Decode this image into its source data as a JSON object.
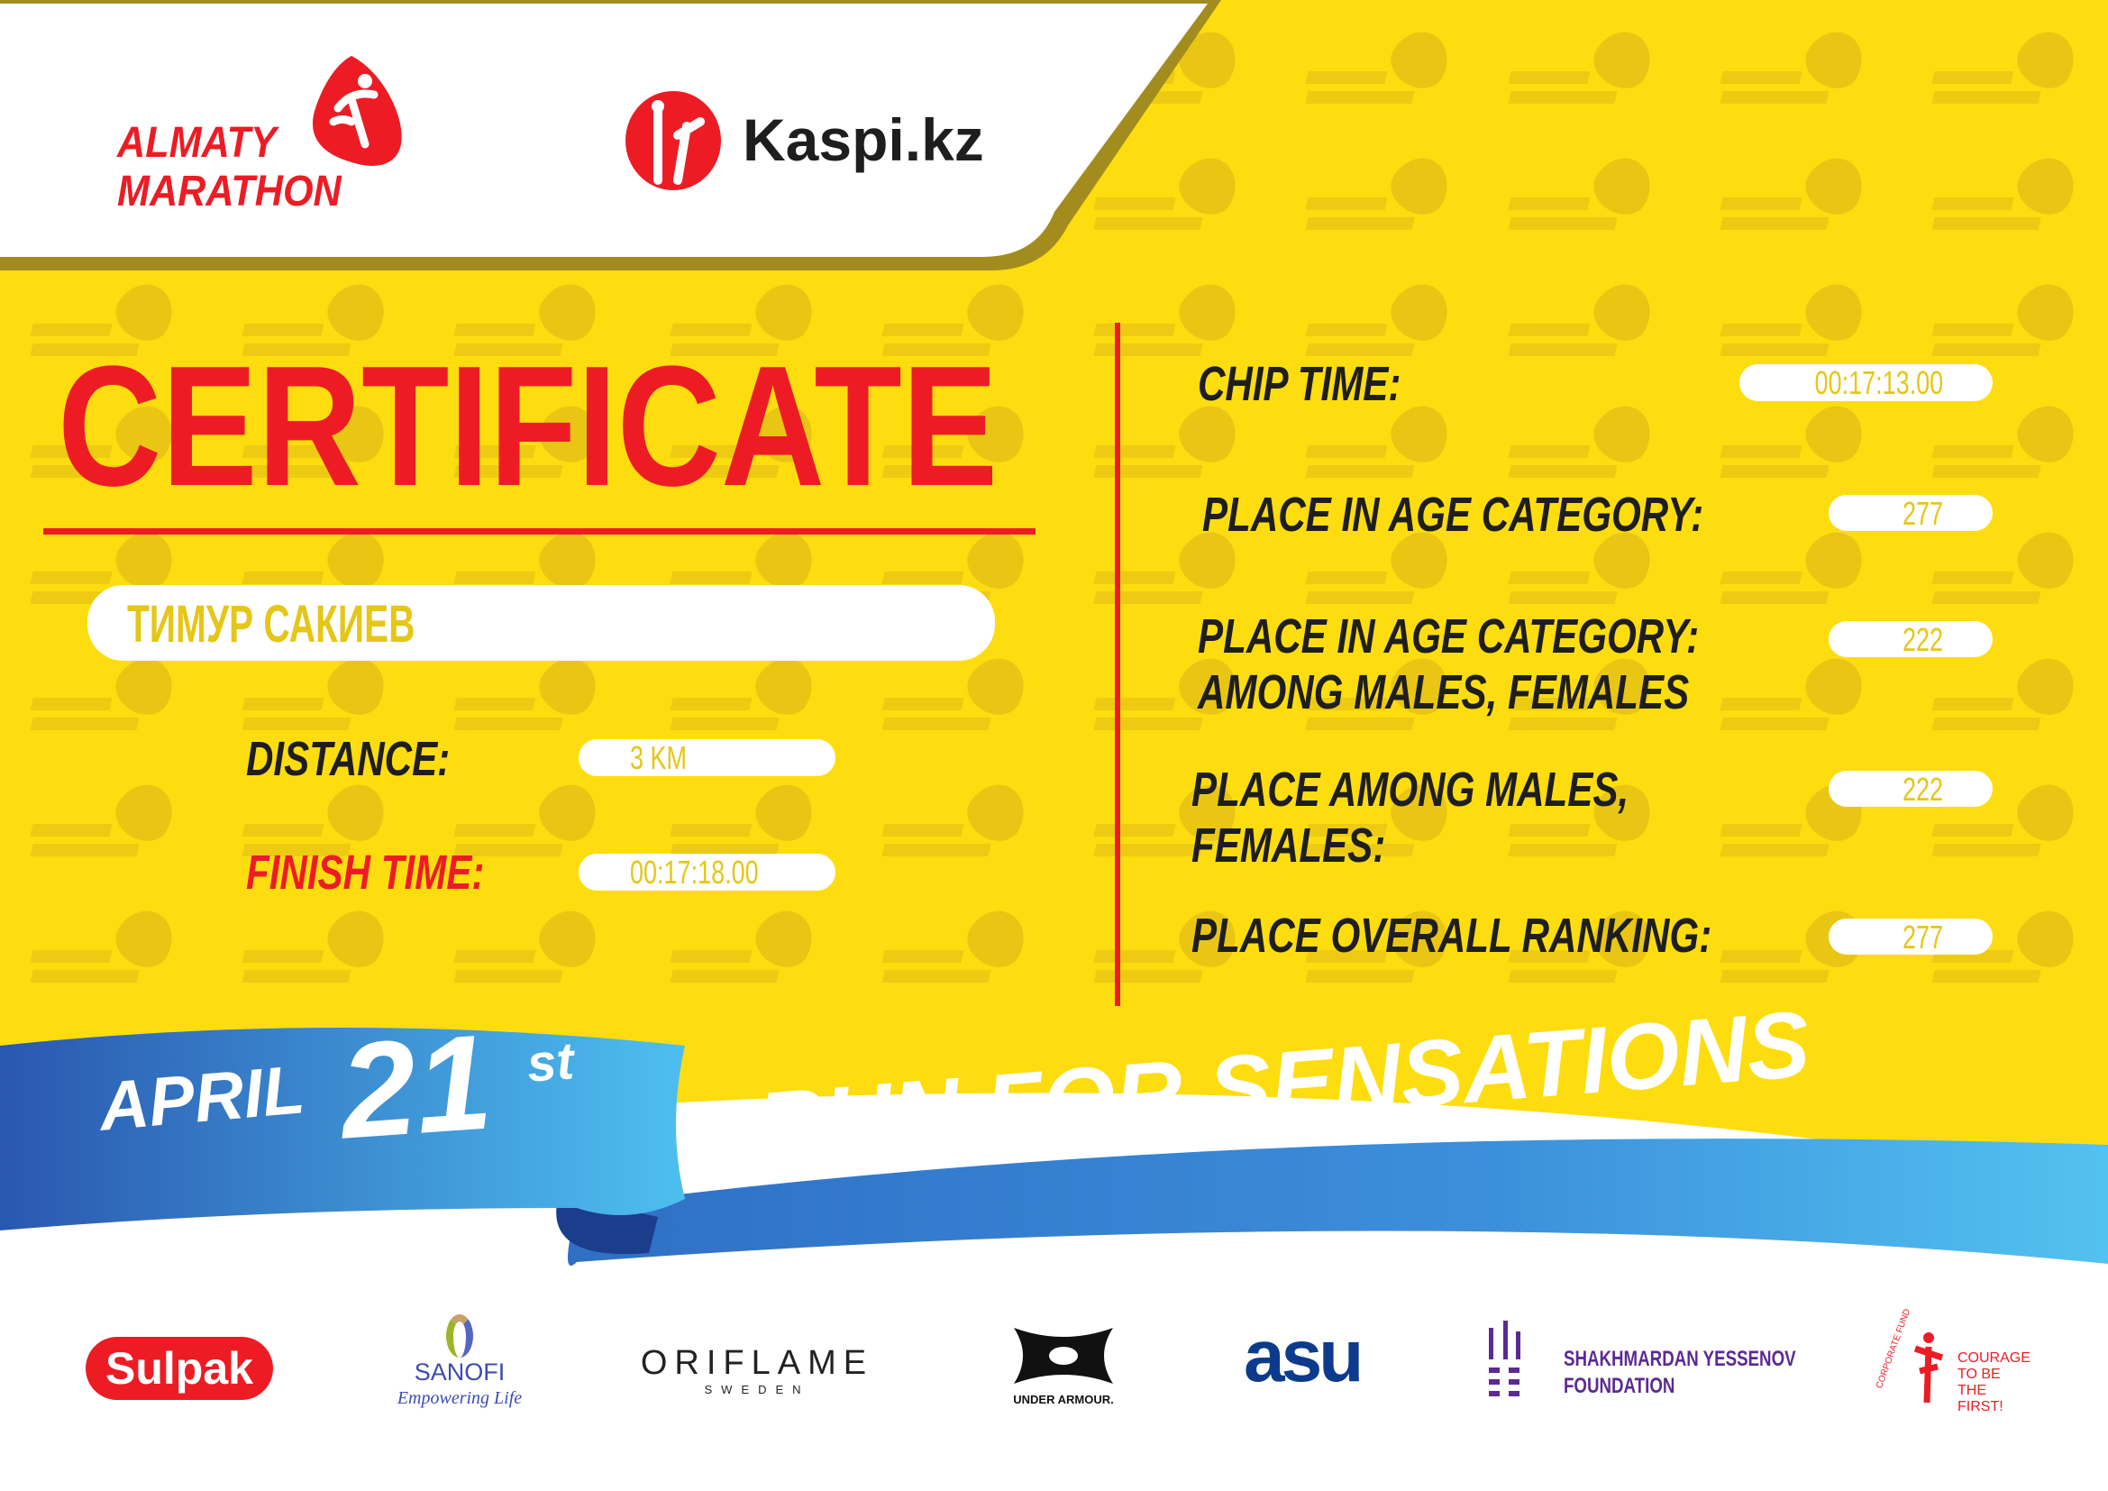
{
  "header": {
    "event_logo": {
      "line1": "ALMATY",
      "line2": "MARATHON"
    },
    "sponsor_logo": "Kaspi.kz"
  },
  "watermark": {
    "line1": "ALMATY",
    "line2": "MARATHON"
  },
  "certificate": {
    "title": "CERTIFICATE",
    "participant_name": "ТИМУР САКИЕВ",
    "distance_label": "DISTANCE:",
    "distance_value": "3 KM",
    "finish_time_label": "FINISH TIME:",
    "finish_time_value": "00:17:18.00"
  },
  "results": {
    "chip_time_label": "CHIP TIME:",
    "chip_time_value": "00:17:13.00",
    "age_category_label": "PLACE IN AGE CATEGORY:",
    "age_category_value": "277",
    "age_category_gender_label_1": "PLACE IN AGE CATEGORY:",
    "age_category_gender_label_2": "AMONG MALES, FEMALES",
    "age_category_gender_value": "222",
    "gender_label_1": "PLACE AMONG MALES,",
    "gender_label_2": "FEMALES:",
    "gender_value": "222",
    "overall_label": "PLACE OVERALL RANKING:",
    "overall_value": "277"
  },
  "banner": {
    "month": "APRIL",
    "day": "21",
    "suffix": "st",
    "slogan": "RUN FOR SENSATIONS"
  },
  "sponsors": {
    "sulpak": "Sulpak",
    "sanofi": "SANOFI",
    "sanofi_tagline": "Empowering Life",
    "oriflame": "ORIFLAME",
    "oriflame_sub": "SWEDEN",
    "under_armour": "UNDER ARMOUR.",
    "asu": "asu",
    "yessenov_1": "SHAKHMARDAN YESSENOV",
    "yessenov_2": "FOUNDATION",
    "courage_arc": "CORPORATE FUND",
    "courage_1": "COURAGE",
    "courage_2": "TO BE",
    "courage_3": "THE FIRST!"
  },
  "colors": {
    "yellow": "#FDDD0F",
    "red": "#ED1C24",
    "blue": "#2F6FC4",
    "light_blue": "#4DBFEF",
    "value_text": "#E6C616"
  }
}
